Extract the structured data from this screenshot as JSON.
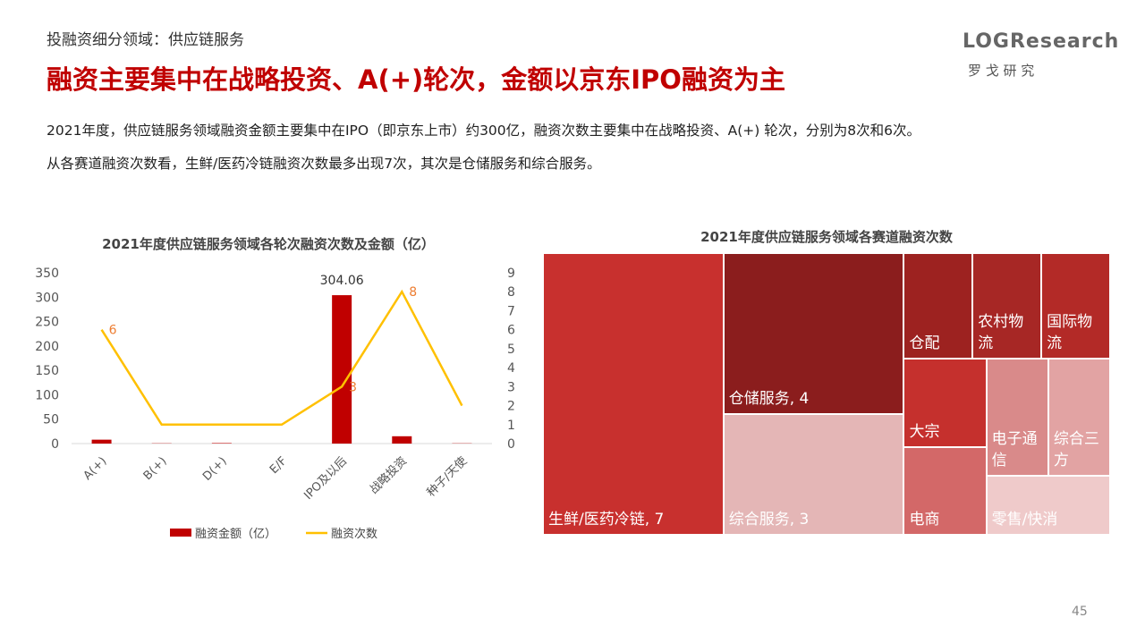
{
  "header": {
    "section": "投融资细分领域：供应链服务",
    "title": "融资主要集中在战略投资、A(+)轮次，金额以京东IPO融资为主",
    "body": [
      "2021年度，供应链服务领域融资金额主要集中在IPO（即京东上市）约300亿，融资次数主要集中在战略投资、A(+) 轮次，分别为8次和6次。",
      "从各赛道融资次数看，生鲜/医药冷链融资次数最多出现7次，其次是仓储服务和综合服务。"
    ],
    "logo": "LOGResearch",
    "logo_sub": "罗 戈 研 究"
  },
  "page_number": "45",
  "chart_data": [
    {
      "type": "combo",
      "title": "2021年度供应链服务领域各轮次融资次数及金额（亿）",
      "categories": [
        "A(+)",
        "B(+)",
        "D(+)",
        "E/F",
        "IPO及以后",
        "战略投资",
        "种子/天使"
      ],
      "series": [
        {
          "name": "融资金额（亿）",
          "type": "bar",
          "color": "#c00000",
          "values": [
            8,
            0.5,
            1,
            0,
            304.06,
            15,
            0.5
          ],
          "value_labels": [
            null,
            null,
            null,
            null,
            "304.06",
            null,
            null
          ]
        },
        {
          "name": "融资次数",
          "type": "line",
          "axis": "y2",
          "color": "#ffc000",
          "label_color": "#ed7d31",
          "values": [
            6,
            1,
            1,
            1,
            3,
            8,
            2
          ],
          "value_labels": [
            "6",
            null,
            null,
            null,
            "3",
            "8",
            null
          ]
        }
      ],
      "ylim": [
        0,
        350
      ],
      "yticks": [
        0,
        50,
        100,
        150,
        200,
        250,
        300,
        350
      ],
      "y2lim": [
        0,
        9
      ],
      "y2ticks": [
        0,
        1,
        2,
        3,
        4,
        5,
        6,
        7,
        8,
        9
      ],
      "legend": "bottom"
    },
    {
      "type": "treemap",
      "title": "2021年度供应链服务领域各赛道融资次数",
      "categories": [
        "生鲜/医药冷链, 7",
        "仓储服务, 4",
        "综合服务, 3",
        "仓配",
        "农村物流",
        "国际物流",
        "大宗",
        "电商",
        "电子通信",
        "综合三方",
        "零售/快消"
      ],
      "values": [
        7,
        4,
        3,
        1,
        1,
        1,
        1,
        1,
        1,
        1,
        1
      ],
      "colors": [
        "#c8302e",
        "#8b1d1d",
        "#e4b6b6",
        "#9d2220",
        "#a72725",
        "#b32a27",
        "#c5302d",
        "#d36868",
        "#d98a8a",
        "#e2a3a3",
        "#efcaca"
      ]
    }
  ]
}
